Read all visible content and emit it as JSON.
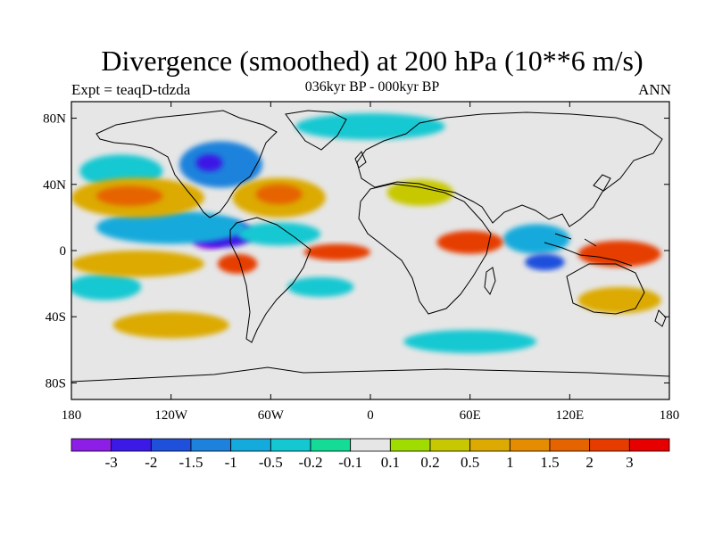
{
  "header": {
    "title": "Divergence (smoothed) at 200 hPa (10**6 m/s)",
    "left_label": "Expt = teaqD-tdzda",
    "center_label": "036kyr BP - 000kyr BP",
    "right_label": "ANN"
  },
  "map": {
    "projection": "cylindrical-equidistant",
    "lon_range": [
      -180,
      180
    ],
    "lat_range": [
      -90,
      90
    ],
    "lat_ticks": [
      {
        "value": 80,
        "label": "80N"
      },
      {
        "value": 40,
        "label": "40N"
      },
      {
        "value": 0,
        "label": "0"
      },
      {
        "value": -40,
        "label": "40S"
      },
      {
        "value": -80,
        "label": "80S"
      }
    ],
    "lon_ticks": [
      {
        "value": -180,
        "label": "180"
      },
      {
        "value": -120,
        "label": "120W"
      },
      {
        "value": -60,
        "label": "60W"
      },
      {
        "value": 0,
        "label": "0"
      },
      {
        "value": 60,
        "label": "60E"
      },
      {
        "value": 120,
        "label": "120E"
      },
      {
        "value": 180,
        "label": "180"
      }
    ],
    "background_color": "#e6e6e6",
    "features": [
      {
        "name": "sw-atlantic-convergence",
        "lon": -97,
        "lat": 6,
        "rx": 10,
        "ry": 5,
        "level": 0
      },
      {
        "name": "east-pacific-convergence",
        "lon": -88,
        "lat": 10,
        "rx": 18,
        "ry": 8,
        "level": 1
      },
      {
        "name": "east-pacific-band",
        "lon": -120,
        "lat": 14,
        "rx": 45,
        "ry": 10,
        "level": 4
      },
      {
        "name": "atlantic-conv-band",
        "lon": -55,
        "lat": 10,
        "rx": 25,
        "ry": 7,
        "level": 5
      },
      {
        "name": "canada-convergence",
        "lon": -90,
        "lat": 52,
        "rx": 25,
        "ry": 14,
        "level": 3
      },
      {
        "name": "canada-core",
        "lon": -97,
        "lat": 53,
        "rx": 8,
        "ry": 5,
        "level": 1
      },
      {
        "name": "north-pacific-cool",
        "lon": -150,
        "lat": 48,
        "rx": 25,
        "ry": 10,
        "level": 5
      },
      {
        "name": "arctic-conv-band",
        "lon": 0,
        "lat": 75,
        "rx": 45,
        "ry": 8,
        "level": 5
      },
      {
        "name": "indian-ocean-conv",
        "lon": 100,
        "lat": 7,
        "rx": 20,
        "ry": 9,
        "level": 4
      },
      {
        "name": "maritime-cont-conv",
        "lon": 105,
        "lat": -7,
        "rx": 12,
        "ry": 5,
        "level": 2
      },
      {
        "name": "south-pacific-band",
        "lon": -160,
        "lat": -22,
        "rx": 22,
        "ry": 8,
        "level": 5
      },
      {
        "name": "south-atlantic-band",
        "lon": -30,
        "lat": -22,
        "rx": 20,
        "ry": 6,
        "level": 5
      },
      {
        "name": "southern-ocean-band",
        "lon": 60,
        "lat": -55,
        "rx": 40,
        "ry": 7,
        "level": 5
      },
      {
        "name": "north-atlantic-div",
        "lon": -55,
        "lat": 32,
        "rx": 28,
        "ry": 12,
        "level": 10
      },
      {
        "name": "north-atlantic-core",
        "lon": -55,
        "lat": 34,
        "rx": 14,
        "ry": 6,
        "level": 12
      },
      {
        "name": "north-pacific-div",
        "lon": -140,
        "lat": 32,
        "rx": 40,
        "ry": 12,
        "level": 10
      },
      {
        "name": "north-pacific-core",
        "lon": -145,
        "lat": 33,
        "rx": 20,
        "ry": 6,
        "level": 12
      },
      {
        "name": "south-america-div",
        "lon": -80,
        "lat": -8,
        "rx": 12,
        "ry": 6,
        "level": 13
      },
      {
        "name": "equatorial-atlantic-div",
        "lon": -20,
        "lat": -1,
        "rx": 20,
        "ry": 5,
        "level": 13
      },
      {
        "name": "arabian-sea-div",
        "lon": 60,
        "lat": 5,
        "rx": 20,
        "ry": 7,
        "level": 13
      },
      {
        "name": "west-pacific-div",
        "lon": 150,
        "lat": -2,
        "rx": 25,
        "ry": 8,
        "level": 13
      },
      {
        "name": "tropical-pacific-div",
        "lon": -140,
        "lat": -8,
        "rx": 40,
        "ry": 8,
        "level": 10
      },
      {
        "name": "south-pacific-div",
        "lon": -120,
        "lat": -45,
        "rx": 35,
        "ry": 8,
        "level": 10
      },
      {
        "name": "south-indian-div",
        "lon": 150,
        "lat": -30,
        "rx": 25,
        "ry": 8,
        "level": 10
      },
      {
        "name": "africa-div",
        "lon": 30,
        "lat": 35,
        "rx": 20,
        "ry": 8,
        "level": 9
      }
    ]
  },
  "colorbar": {
    "colors": [
      "#8d1ee6",
      "#3c19e6",
      "#1e50dc",
      "#1e82dc",
      "#14aadc",
      "#14c8d2",
      "#14dc96",
      "#e6e6e6",
      "#a0dc00",
      "#c8c800",
      "#dcaa00",
      "#e68c00",
      "#e66400",
      "#e63c00",
      "#e60000"
    ],
    "labels": [
      "-3",
      "-2",
      "-1.5",
      "-1",
      "-0.5",
      "-0.2",
      "-0.1",
      "0.1",
      "0.2",
      "0.5",
      "1",
      "1.5",
      "2",
      "3"
    ]
  }
}
